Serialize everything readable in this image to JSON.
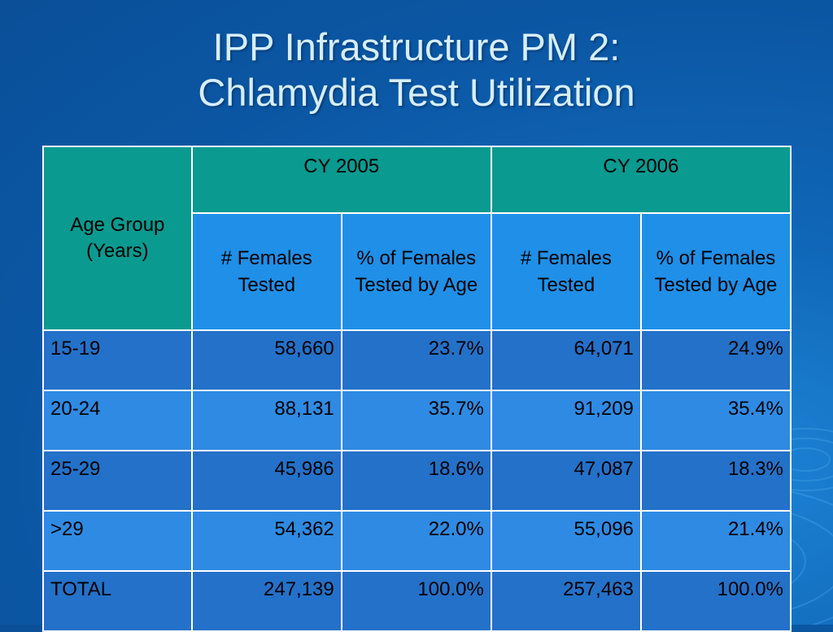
{
  "slide": {
    "title_line1": "IPP Infrastructure PM 2:",
    "title_line2": "Chlamydia Test Utilization"
  },
  "table": {
    "age_header_line1": "Age Group",
    "age_header_line2": "(Years)",
    "years": [
      "CY 2005",
      "CY 2006"
    ],
    "sub_headers": {
      "count": "# Females Tested",
      "percent": "% of Females Tested by Age"
    },
    "rows": [
      {
        "age": "15-19",
        "c2005": "58,660",
        "p2005": "23.7%",
        "c2006": "64,071",
        "p2006": "24.9%"
      },
      {
        "age": "20-24",
        "c2005": "88,131",
        "p2005": "35.7%",
        "c2006": "91,209",
        "p2006": "35.4%"
      },
      {
        "age": "25-29",
        "c2005": "45,986",
        "p2005": "18.6%",
        "c2006": "47,087",
        "p2006": "18.3%"
      },
      {
        "age": ">29",
        "c2005": "54,362",
        "p2005": "22.0%",
        "c2006": "55,096",
        "p2006": "21.4%"
      },
      {
        "age": "TOTAL",
        "c2005": "247,139",
        "p2005": "100.0%",
        "c2006": "257,463",
        "p2006": "100.0%"
      }
    ]
  }
}
